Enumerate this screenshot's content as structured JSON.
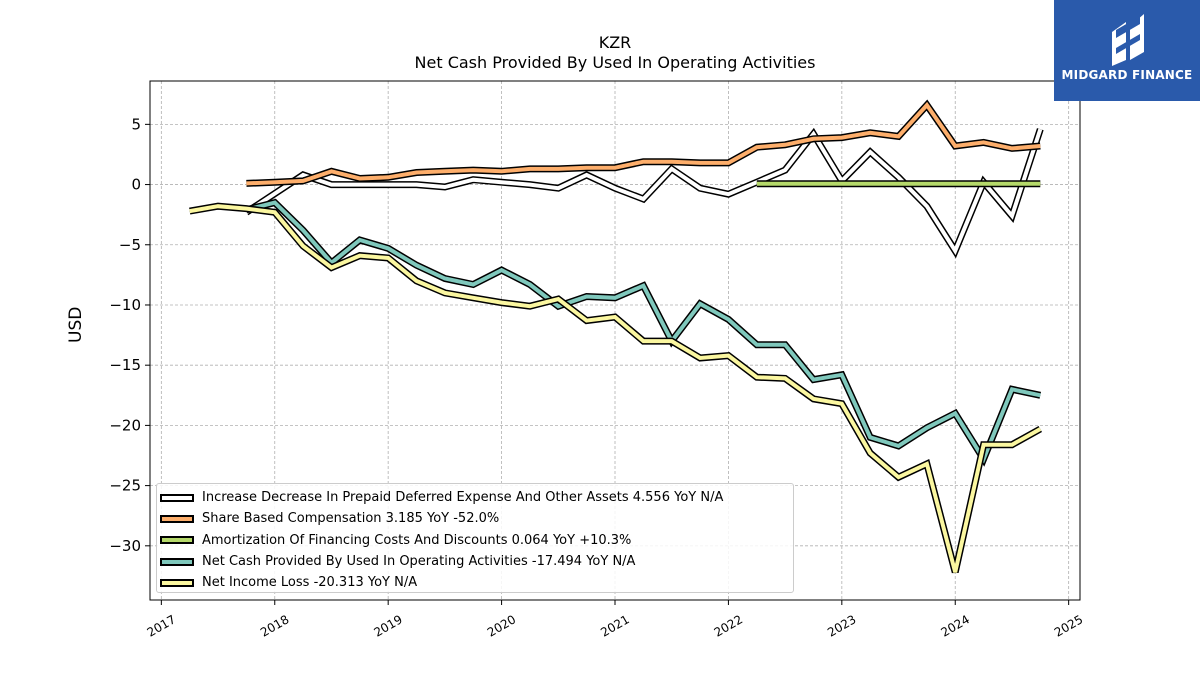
{
  "header": {
    "ticker": "KZR",
    "subtitle": "Net Cash Provided By Used In Operating Activities"
  },
  "logo": {
    "text": "MIDGARD FINANCE",
    "bg_color": "#2a5aab"
  },
  "chart_data": {
    "type": "line",
    "ylabel": "USD",
    "xlim": [
      2016.9,
      2025.1
    ],
    "ylim": [
      -34.5,
      8.6
    ],
    "x_ticks": [
      2017,
      2018,
      2019,
      2020,
      2021,
      2022,
      2023,
      2024,
      2025
    ],
    "x_tick_labels": [
      "2017",
      "2018",
      "2019",
      "2020",
      "2021",
      "2022",
      "2023",
      "2024",
      "2025"
    ],
    "y_ticks": [
      5,
      0,
      -5,
      -10,
      -15,
      -20,
      -25,
      -30
    ],
    "y_tick_labels": [
      "5",
      "0",
      "−5",
      "−10",
      "−15",
      "−20",
      "−25",
      "−30"
    ],
    "grid": true,
    "legend_position": "lower-left",
    "series": [
      {
        "name": "Increase Decrease In Prepaid Deferred Expense And Other Assets",
        "legend": "Increase Decrease In Prepaid Deferred Expense And Other Assets  4.556 YoY N/A",
        "color": "#ffffff",
        "x": [
          2017.75,
          2018.25,
          2018.5,
          2018.75,
          2019.0,
          2019.25,
          2019.5,
          2019.75,
          2020.0,
          2020.25,
          2020.5,
          2020.75,
          2021.0,
          2021.25,
          2021.5,
          2021.75,
          2022.0,
          2022.25,
          2022.5,
          2022.75,
          2023.0,
          2023.25,
          2023.5,
          2023.75,
          2024.0,
          2024.25,
          2024.5,
          2024.75
        ],
        "y": [
          -2.3,
          0.8,
          0.0,
          0.0,
          0.0,
          0.0,
          -0.2,
          0.4,
          0.2,
          0.0,
          -0.3,
          0.8,
          -0.3,
          -1.2,
          1.3,
          -0.3,
          -0.8,
          0.2,
          1.2,
          4.2,
          0.3,
          2.7,
          0.6,
          -1.8,
          -5.5,
          0.2,
          -2.6,
          4.6
        ]
      },
      {
        "name": "Share Based Compensation",
        "legend": "Share Based Compensation  3.185 YoY -52.0%",
        "color": "#fdae6b",
        "x": [
          2017.75,
          2018.0,
          2018.25,
          2018.5,
          2018.75,
          2019.0,
          2019.25,
          2019.5,
          2019.75,
          2020.0,
          2020.25,
          2020.5,
          2020.75,
          2021.0,
          2021.25,
          2021.5,
          2021.75,
          2022.0,
          2022.25,
          2022.5,
          2022.75,
          2023.0,
          2023.25,
          2023.5,
          2023.75,
          2024.0,
          2024.25,
          2024.5,
          2024.75
        ],
        "y": [
          0.1,
          0.2,
          0.3,
          1.1,
          0.5,
          0.6,
          1.0,
          1.1,
          1.2,
          1.1,
          1.3,
          1.3,
          1.4,
          1.4,
          1.9,
          1.9,
          1.8,
          1.8,
          3.1,
          3.3,
          3.8,
          3.9,
          4.3,
          4.0,
          6.6,
          3.2,
          3.5,
          3.0,
          3.2
        ]
      },
      {
        "name": "Amortization Of Financing Costs And Discounts",
        "legend": "Amortization Of Financing Costs And Discounts  0.064 YoY +10.3%",
        "color": "#b5d96a",
        "x": [
          2022.25,
          2022.5,
          2022.75,
          2023.0,
          2023.25,
          2023.5,
          2023.75,
          2024.0,
          2024.25,
          2024.5,
          2024.75
        ],
        "y": [
          0.06,
          0.06,
          0.06,
          0.06,
          0.06,
          0.06,
          0.06,
          0.06,
          0.06,
          0.06,
          0.06
        ]
      },
      {
        "name": "Net Cash Provided By Used In Operating Activities",
        "legend": "Net Cash Provided By Used In Operating Activities  -17.494 YoY N/A",
        "color": "#7fc8bc",
        "x": [
          2017.75,
          2018.0,
          2018.25,
          2018.5,
          2018.75,
          2019.0,
          2019.25,
          2019.5,
          2019.75,
          2020.0,
          2020.25,
          2020.5,
          2020.75,
          2021.0,
          2021.25,
          2021.5,
          2021.75,
          2022.0,
          2022.25,
          2022.5,
          2022.75,
          2023.0,
          2023.25,
          2023.5,
          2023.75,
          2024.0,
          2024.25,
          2024.5,
          2024.75
        ],
        "y": [
          -2.1,
          -1.5,
          -3.8,
          -6.5,
          -4.6,
          -5.3,
          -6.7,
          -7.8,
          -8.3,
          -7.1,
          -8.3,
          -10.1,
          -9.3,
          -9.4,
          -8.4,
          -13.0,
          -9.9,
          -11.2,
          -13.3,
          -13.3,
          -16.2,
          -15.8,
          -21.0,
          -21.7,
          -20.2,
          -19.0,
          -22.8,
          -17.0,
          -17.5
        ]
      },
      {
        "name": "Net Income Loss",
        "legend": "Net Income Loss  -20.313 YoY N/A",
        "color": "#fbf7a0",
        "x": [
          2017.25,
          2017.5,
          2017.75,
          2018.0,
          2018.25,
          2018.5,
          2018.75,
          2019.0,
          2019.25,
          2019.5,
          2019.75,
          2020.0,
          2020.25,
          2020.5,
          2020.75,
          2021.0,
          2021.25,
          2021.5,
          2021.75,
          2022.0,
          2022.25,
          2022.5,
          2022.75,
          2023.0,
          2023.25,
          2023.5,
          2023.75,
          2024.0,
          2024.25,
          2024.5,
          2024.75
        ],
        "y": [
          -2.2,
          -1.8,
          -2.0,
          -2.3,
          -5.1,
          -6.9,
          -5.9,
          -6.1,
          -8.0,
          -9.0,
          -9.4,
          -9.8,
          -10.1,
          -9.5,
          -11.3,
          -11.0,
          -13.0,
          -13.0,
          -14.4,
          -14.2,
          -16.0,
          -16.1,
          -17.8,
          -18.2,
          -22.3,
          -24.3,
          -23.2,
          -32.2,
          -21.6,
          -21.6,
          -20.3
        ]
      }
    ]
  }
}
